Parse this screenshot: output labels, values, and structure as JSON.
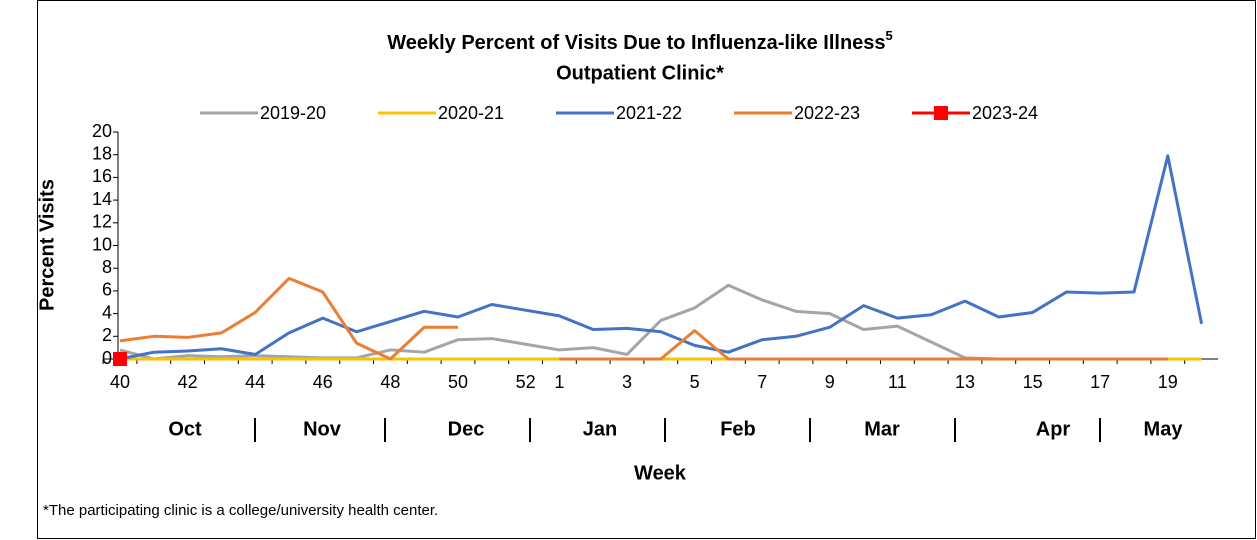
{
  "chart_data": {
    "type": "line",
    "title": "Weekly Percent of Visits Due to Influenza-like Illness",
    "title_superscript": "5",
    "subtitle": "Outpatient Clinic*",
    "y_label": "Percent Visits",
    "x_label": "Week",
    "footnote": "*The participating clinic is a college/university health center.",
    "categories": [
      "40",
      null,
      "42",
      null,
      "44",
      null,
      "46",
      null,
      "48",
      null,
      "50",
      null,
      "52",
      "1",
      null,
      "3",
      null,
      "5",
      null,
      "7",
      null,
      "9",
      null,
      "11",
      null,
      "13",
      null,
      "15",
      null,
      "17",
      null,
      "19",
      null
    ],
    "months": [
      "Oct",
      "Nov",
      "Dec",
      "Jan",
      "Feb",
      "Mar",
      "Apr",
      "May"
    ],
    "ylim": [
      0,
      20
    ],
    "yticks": [
      0,
      2,
      4,
      6,
      8,
      10,
      12,
      14,
      16,
      18,
      20
    ],
    "grid": false,
    "legend": "top",
    "series": [
      {
        "name": "2019-20",
        "color": "#a5a5a5",
        "values": [
          0.8,
          0,
          0.3,
          0.2,
          0.3,
          0.2,
          0.1,
          0.1,
          0.8,
          0.6,
          1.7,
          1.8,
          1.3,
          0.8,
          1.0,
          0.4,
          3.4,
          4.5,
          6.5,
          5.2,
          4.2,
          4.0,
          2.6,
          2.9,
          1.5,
          0.1,
          0,
          0,
          0,
          0,
          0,
          0,
          0
        ]
      },
      {
        "name": "2020-21",
        "color": "#ffc000",
        "values": [
          0,
          0,
          0,
          0,
          0,
          0,
          0,
          0,
          0,
          0,
          0,
          0,
          0,
          0,
          0,
          0,
          0,
          0,
          0,
          0,
          0,
          0,
          0,
          0,
          0,
          0,
          0,
          0,
          0,
          0,
          0,
          0,
          0
        ]
      },
      {
        "name": "2021-22",
        "color": "#4472c4",
        "values": [
          0,
          0.6,
          0.7,
          0.9,
          0.4,
          2.3,
          3.6,
          2.4,
          3.3,
          4.2,
          3.7,
          4.8,
          4.3,
          3.8,
          2.6,
          2.7,
          2.4,
          1.2,
          0.6,
          1.7,
          2.0,
          2.8,
          4.7,
          3.6,
          3.9,
          5.1,
          3.7,
          4.1,
          5.9,
          5.8,
          5.9,
          17.9,
          3.1
        ]
      },
      {
        "name": "2022-23",
        "color": "#ed7d31",
        "values": [
          1.6,
          2.0,
          1.9,
          2.3,
          4.1,
          7.1,
          5.9,
          1.4,
          0,
          2.8,
          2.8,
          null,
          null,
          0,
          0,
          0,
          0,
          2.5,
          0,
          0,
          0,
          0,
          0,
          0,
          0,
          0,
          0,
          0,
          0,
          0,
          0,
          0,
          null
        ]
      },
      {
        "name": "2023-24",
        "color": "#ff0000",
        "marker": "square",
        "values": [
          0,
          null,
          null,
          null,
          null,
          null,
          null,
          null,
          null,
          null,
          null,
          null,
          null,
          null,
          null,
          null,
          null,
          null,
          null,
          null,
          null,
          null,
          null,
          null,
          null,
          null,
          null,
          null,
          null,
          null,
          null,
          null,
          null
        ]
      }
    ]
  }
}
